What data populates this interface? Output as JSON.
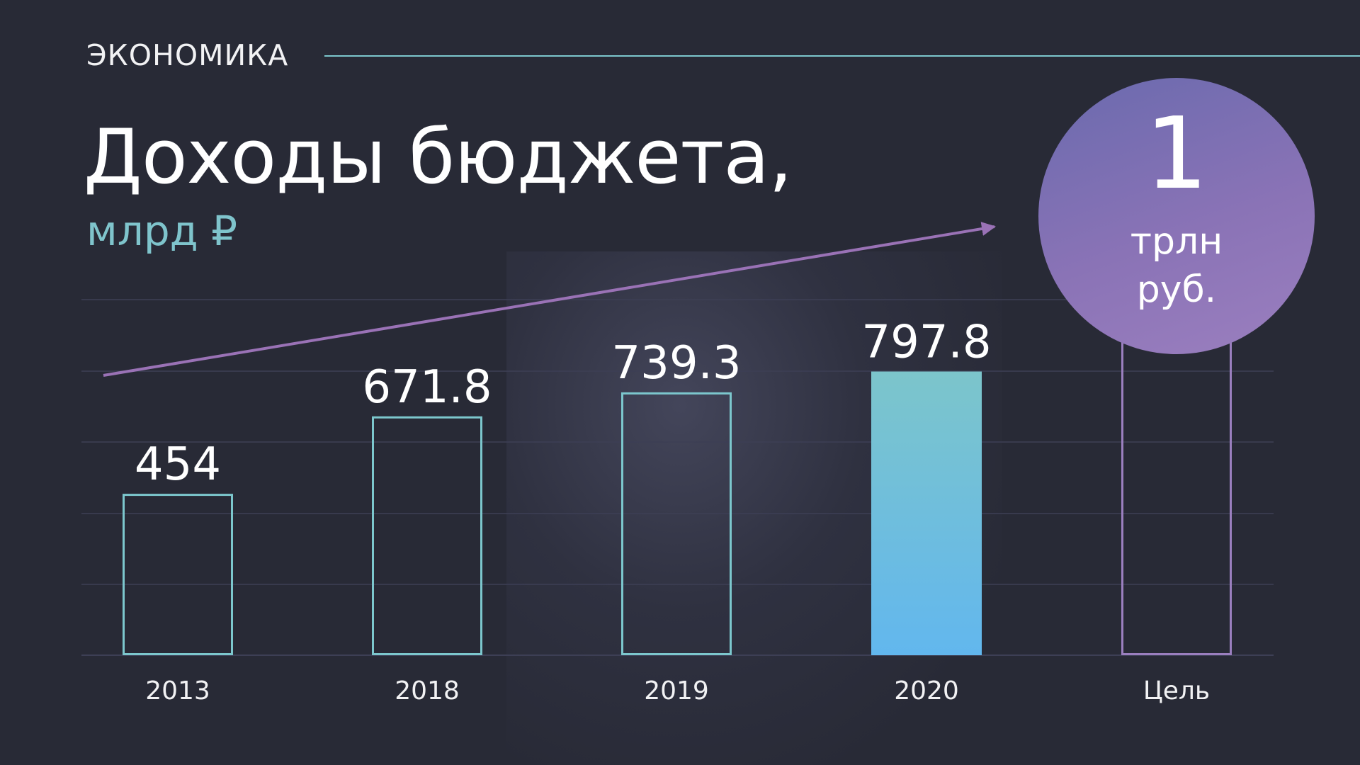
{
  "section": {
    "label": "ЭКОНОМИКА"
  },
  "header": {
    "title": "Доходы бюджета,",
    "subtitle": "млрд ₽"
  },
  "goal": {
    "value": "1",
    "unit_line1": "трлн",
    "unit_line2": "руб."
  },
  "colors": {
    "background": "#282a36",
    "teal_outline": "#7cc7cd",
    "highlight_top": "#7cc5cb",
    "highlight_bottom": "#62b7ee",
    "goal_outline": "#9b7fbf",
    "trend_arrow": "#9a72b6",
    "gridline": "#3d3f55",
    "subtitle": "#7fc4cc"
  },
  "chart_data": {
    "type": "bar",
    "categories": [
      "2013",
      "2018",
      "2019",
      "2020",
      "Цель"
    ],
    "values": [
      454,
      671.8,
      739.3,
      797.8,
      1000
    ],
    "data_labels": [
      "454",
      "671.8",
      "739.3",
      "797.8",
      ""
    ],
    "highlight_index": 3,
    "goal_index": 4,
    "ylim": [
      0,
      1000
    ],
    "grid": true,
    "trend_arrow": true
  }
}
